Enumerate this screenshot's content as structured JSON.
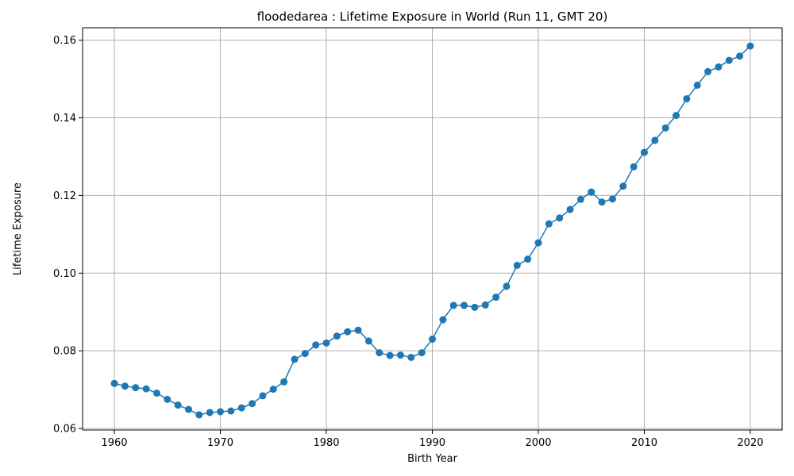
{
  "chart_data": {
    "type": "line",
    "title": "floodedarea : Lifetime Exposure in World (Run 11, GMT 20)",
    "xlabel": "Birth Year",
    "ylabel": "Lifetime Exposure",
    "xlim": [
      1957,
      2023
    ],
    "ylim": [
      0.0596,
      0.1632
    ],
    "xticks": [
      1960,
      1970,
      1980,
      1990,
      2000,
      2010,
      2020
    ],
    "yticks": [
      0.06,
      0.08,
      0.1,
      0.12,
      0.14,
      0.16
    ],
    "ytick_labels": [
      "0.06",
      "0.08",
      "0.10",
      "0.12",
      "0.14",
      "0.16"
    ],
    "grid": true,
    "color": "#1f77b4",
    "marker": "circle",
    "series": [
      {
        "x": [
          1960,
          1961,
          1962,
          1963,
          1964,
          1965,
          1966,
          1967,
          1968,
          1969,
          1970,
          1971,
          1972,
          1973,
          1974,
          1975,
          1976,
          1977,
          1978,
          1979,
          1980,
          1981,
          1982,
          1983,
          1984,
          1985,
          1986,
          1987,
          1988,
          1989,
          1990,
          1991,
          1992,
          1993,
          1994,
          1995,
          1996,
          1997,
          1998,
          1999,
          2000,
          2001,
          2002,
          2003,
          2004,
          2005,
          2006,
          2007,
          2008,
          2009,
          2010,
          2011,
          2012,
          2013,
          2014,
          2015,
          2016,
          2017,
          2018,
          2019,
          2020
        ],
        "values": [
          0.0716,
          0.0709,
          0.0705,
          0.0702,
          0.0691,
          0.0675,
          0.066,
          0.0649,
          0.0635,
          0.0641,
          0.0643,
          0.0645,
          0.0653,
          0.0664,
          0.0684,
          0.0701,
          0.072,
          0.0778,
          0.0793,
          0.0815,
          0.082,
          0.0838,
          0.0849,
          0.0853,
          0.0825,
          0.0795,
          0.0788,
          0.0789,
          0.0783,
          0.0795,
          0.083,
          0.088,
          0.0917,
          0.0917,
          0.0912,
          0.0918,
          0.0938,
          0.0966,
          0.102,
          0.1036,
          0.1078,
          0.1127,
          0.1142,
          0.1164,
          0.119,
          0.1209,
          0.1183,
          0.1191,
          0.1224,
          0.1274,
          0.1311,
          0.1342,
          0.1374,
          0.1406,
          0.1449,
          0.1484,
          0.1519,
          0.1531,
          0.1548,
          0.1559,
          0.1585
        ]
      }
    ]
  }
}
